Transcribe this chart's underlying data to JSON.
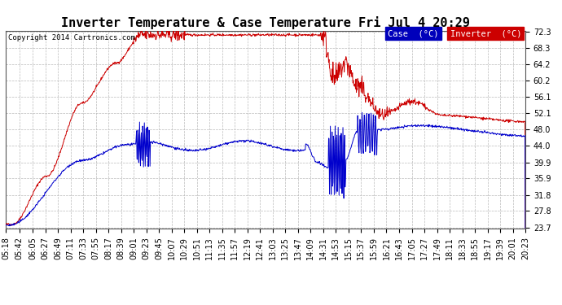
{
  "title": "Inverter Temperature & Case Temperature Fri Jul 4 20:29",
  "copyright": "Copyright 2014 Cartronics.com",
  "legend_case_label": "Case  (°C)",
  "legend_inverter_label": "Inverter  (°C)",
  "legend_case_bg": "#0000bb",
  "legend_inverter_bg": "#cc0000",
  "yticks": [
    23.7,
    27.8,
    31.8,
    35.9,
    39.9,
    44.0,
    48.0,
    52.1,
    56.1,
    60.2,
    64.2,
    68.3,
    72.3
  ],
  "bg_color": "#ffffff",
  "plot_bg": "#ffffff",
  "grid_color": "#bbbbbb",
  "line_color_red": "#cc0000",
  "line_color_blue": "#0000cc",
  "title_fontsize": 11,
  "tick_fontsize": 7
}
